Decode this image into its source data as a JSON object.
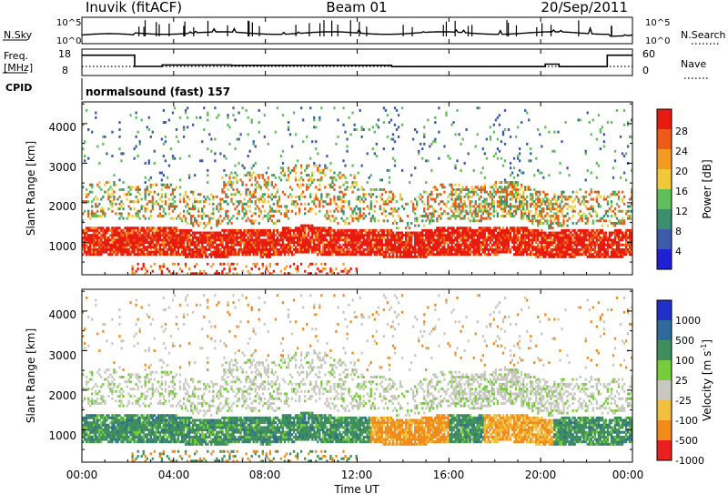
{
  "header": {
    "station": "Inuvik (fitACF)",
    "beam": "Beam 01",
    "date": "20/Sep/2011",
    "nsky_label": "N.Sky",
    "nsky_ticks": [
      "10^5",
      "10^0"
    ],
    "nsearch_label": "N.Search",
    "nsearch_ticks": [
      "10^5",
      "10^0"
    ],
    "freq_label_line1": "Freq.",
    "freq_label_line2": "[MHz]",
    "freq_ticks": [
      "18",
      "8"
    ],
    "nave_label": "Nave",
    "nave_ticks": [
      "60",
      "0"
    ],
    "cpid_label": "CPID",
    "cpid_text": "normalsound (fast) 157"
  },
  "power_panel": {
    "ylabel": "Slant Range [km]",
    "yticks": [
      "1000",
      "2000",
      "3000",
      "4000"
    ],
    "colorbar_label": "Power [dB]",
    "colorbar_ticks": [
      "4",
      "8",
      "12",
      "16",
      "20",
      "24",
      "28"
    ]
  },
  "velocity_panel": {
    "ylabel": "Slant Range [km]",
    "yticks": [
      "1000",
      "2000",
      "3000",
      "4000"
    ],
    "colorbar_label": "Velocity [m s",
    "colorbar_label_sup": "-1",
    "colorbar_label_end": "]",
    "colorbar_ticks": [
      "1000",
      "500",
      "100",
      "25",
      "-25",
      "-100",
      "-500",
      "-1000"
    ]
  },
  "xaxis": {
    "label": "Time UT",
    "ticks": [
      "00:00",
      "04:00",
      "08:00",
      "12:00",
      "16:00",
      "20:00",
      "00:00"
    ]
  },
  "chart_data": {
    "type": "heatmap",
    "x_range_hours": [
      0,
      24
    ],
    "y_range_km": [
      180,
      4550
    ],
    "power_scale_db": [
      0,
      30
    ],
    "power_colors": [
      "#1f1fd6",
      "#3d5ba8",
      "#3c8f6e",
      "#5fbf5a",
      "#f0c838",
      "#f39a22",
      "#ee5a18",
      "#e81b10"
    ],
    "velocity_scale": [
      1000,
      500,
      100,
      25,
      -25,
      -100,
      -500,
      -1000
    ],
    "velocity_colors": [
      "#2030c8",
      "#2f6a9a",
      "#3f8f5e",
      "#77cc3a",
      "#c8c8c0",
      "#f0c040",
      "#f18c1c",
      "#e82020"
    ],
    "freq_segments": [
      {
        "start": 0.0,
        "end": 2.3,
        "mhz": 16.0
      },
      {
        "start": 2.3,
        "end": 3.5,
        "mhz": 10.5
      },
      {
        "start": 3.5,
        "end": 6.5,
        "mhz": 11.2
      },
      {
        "start": 6.5,
        "end": 13.5,
        "mhz": 11.0
      },
      {
        "start": 13.5,
        "end": 20.2,
        "mhz": 10.4
      },
      {
        "start": 20.2,
        "end": 20.8,
        "mhz": 11.6
      },
      {
        "start": 20.8,
        "end": 22.9,
        "mhz": 10.4
      },
      {
        "start": 22.9,
        "end": 24.0,
        "mhz": 16.0
      }
    ],
    "main_echo_band_km": [
      650,
      1350
    ],
    "upper_echo_band_km": [
      1500,
      2400
    ]
  }
}
